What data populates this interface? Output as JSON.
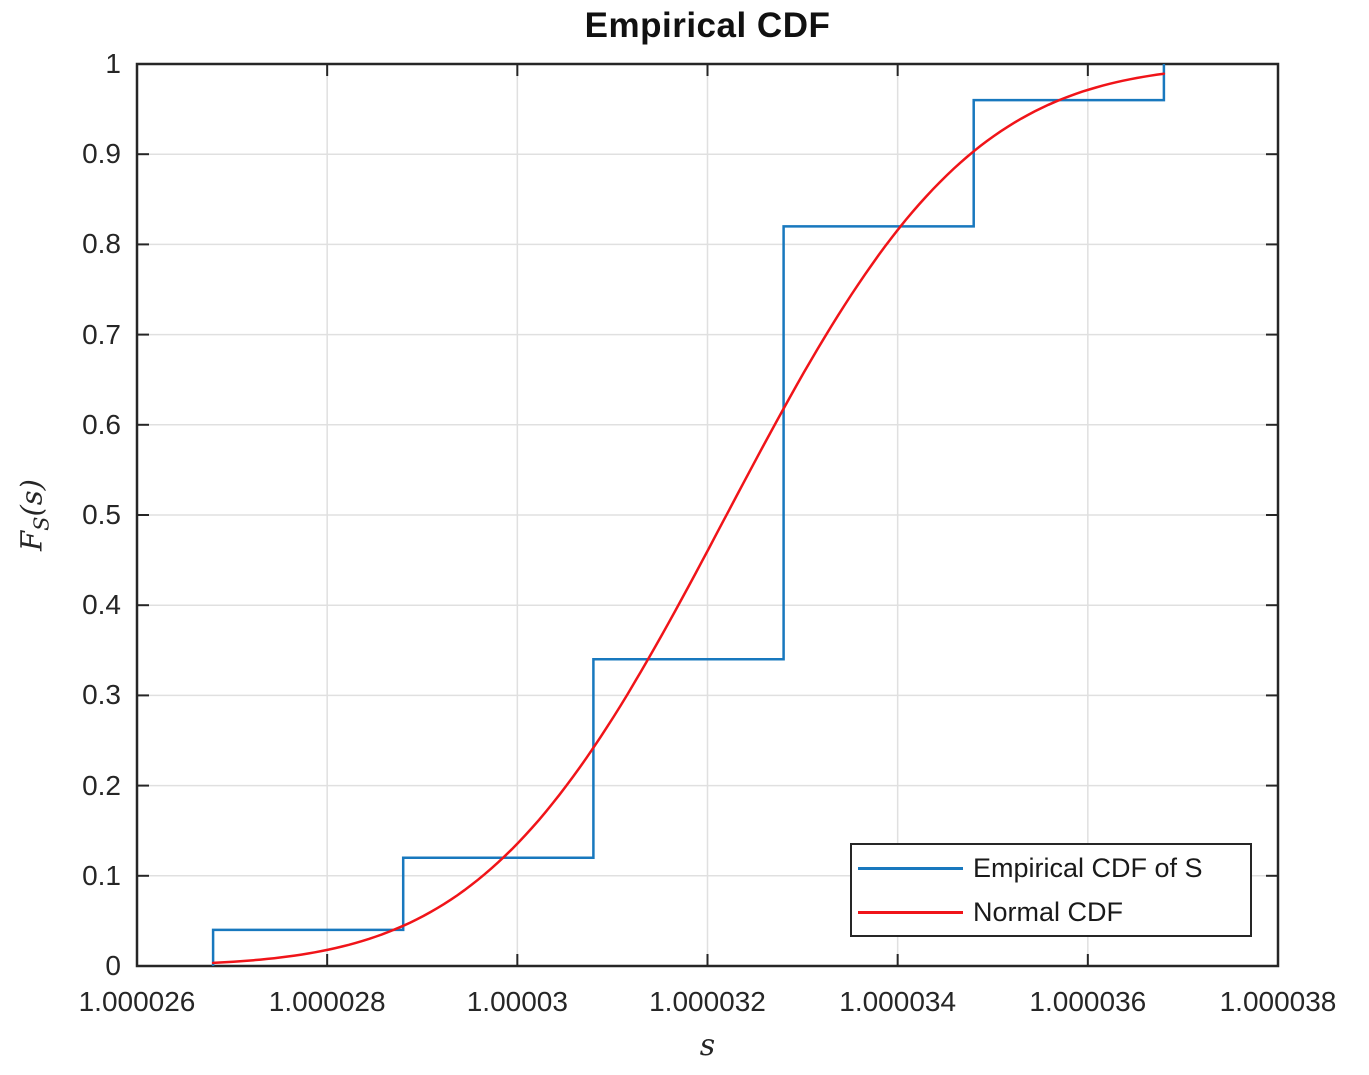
{
  "figure": {
    "title": "Empirical CDF"
  },
  "chart_data": {
    "type": "line",
    "title": "Empirical CDF",
    "xlabel": "s",
    "ylabel": "F_S(s)",
    "ylabel_parts": {
      "base": "F",
      "sub": "S",
      "rest": "(s)"
    },
    "xlim": [
      1.000026,
      1.000038
    ],
    "ylim": [
      0,
      1
    ],
    "grid": true,
    "legend_position": "southeast",
    "x_ticks": [
      {
        "value": 1.000026,
        "label": "1.000026"
      },
      {
        "value": 1.000028,
        "label": "1.000028"
      },
      {
        "value": 1.00003,
        "label": "1.00003"
      },
      {
        "value": 1.000032,
        "label": "1.000032"
      },
      {
        "value": 1.000034,
        "label": "1.000034"
      },
      {
        "value": 1.000036,
        "label": "1.000036"
      },
      {
        "value": 1.000038,
        "label": "1.000038"
      }
    ],
    "y_ticks": [
      {
        "value": 0,
        "label": "0"
      },
      {
        "value": 0.1,
        "label": "0.1"
      },
      {
        "value": 0.2,
        "label": "0.2"
      },
      {
        "value": 0.3,
        "label": "0.3"
      },
      {
        "value": 0.4,
        "label": "0.4"
      },
      {
        "value": 0.5,
        "label": "0.5"
      },
      {
        "value": 0.6,
        "label": "0.6"
      },
      {
        "value": 0.7,
        "label": "0.7"
      },
      {
        "value": 0.8,
        "label": "0.8"
      },
      {
        "value": 0.9,
        "label": "0.9"
      },
      {
        "value": 1,
        "label": "1"
      }
    ],
    "series": [
      {
        "name": "Empirical CDF of S",
        "type": "step",
        "color": "#1878be",
        "x": [
          1.0000268,
          1.0000288,
          1.0000308,
          1.0000328,
          1.0000348,
          1.0000368
        ],
        "cdf": [
          0.04,
          0.12,
          0.34,
          0.82,
          0.96,
          1.0
        ]
      },
      {
        "name": "Normal CDF",
        "type": "normal_cdf_curve",
        "color": "#f01419",
        "mu": 1.0000322,
        "sigma": 2e-06,
        "x_range": [
          1.0000268,
          1.0000368
        ]
      }
    ],
    "legend": {
      "entries": [
        {
          "label": "Empirical CDF of S",
          "color": "#1878be"
        },
        {
          "label": "Normal CDF",
          "color": "#f01419"
        }
      ]
    }
  },
  "colors": {
    "background": "#ffffff",
    "grid": "#e0e0e0",
    "axis": "#262626"
  }
}
